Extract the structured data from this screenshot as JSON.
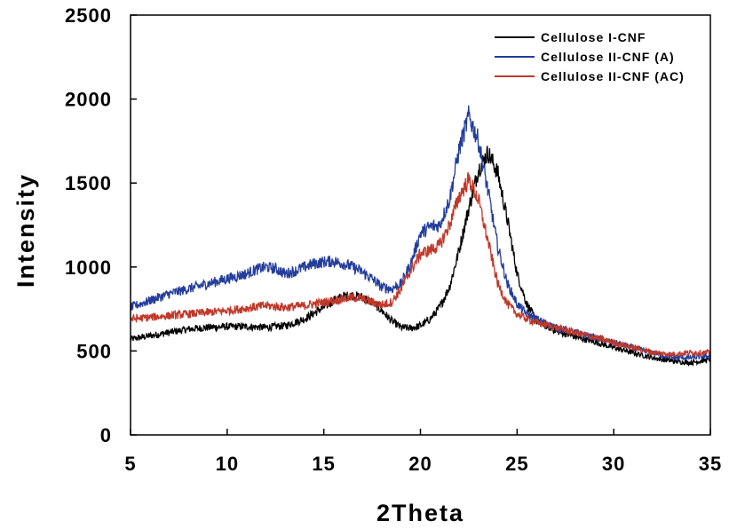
{
  "chart_data": {
    "type": "line",
    "title": "",
    "xlabel": "2Theta",
    "ylabel": "Intensity",
    "xlim": [
      5,
      35
    ],
    "ylim": [
      0,
      2500
    ],
    "xticks": [
      5,
      10,
      15,
      20,
      25,
      30,
      35
    ],
    "yticks": [
      0,
      500,
      1000,
      1500,
      2000,
      2500
    ],
    "grid": false,
    "legend_position": "top-right",
    "series": [
      {
        "name": "Cellulose I-CNF",
        "color": "#000000",
        "x": [
          5,
          6,
          7,
          8,
          9,
          10,
          11,
          12,
          13,
          14,
          15,
          15.5,
          16,
          16.5,
          17,
          17.5,
          18,
          18.5,
          19,
          19.5,
          20,
          20.5,
          21,
          21.5,
          22,
          22.5,
          23,
          23.5,
          24,
          24.5,
          25,
          25.5,
          26,
          27,
          28,
          29,
          30,
          31,
          32,
          33,
          34,
          35
        ],
        "values": [
          570,
          590,
          610,
          630,
          640,
          645,
          645,
          640,
          650,
          690,
          760,
          800,
          825,
          830,
          820,
          790,
          740,
          680,
          640,
          635,
          650,
          690,
          760,
          880,
          1100,
          1350,
          1580,
          1680,
          1560,
          1280,
          960,
          780,
          680,
          620,
          585,
          555,
          520,
          490,
          460,
          440,
          430,
          450
        ]
      },
      {
        "name": "Cellulose II-CNF (A)",
        "color": "#233d9b",
        "x": [
          5,
          6,
          7,
          8,
          9,
          10,
          11,
          11.5,
          12,
          12.5,
          13,
          13.5,
          14,
          14.5,
          15,
          15.5,
          16,
          16.5,
          17,
          17.5,
          18,
          18.5,
          19,
          19.5,
          20,
          20.5,
          21,
          21.5,
          22,
          22.5,
          23,
          23.5,
          24,
          24.5,
          25,
          25.5,
          26,
          27,
          28,
          29,
          30,
          31,
          32,
          33,
          34,
          35
        ],
        "values": [
          760,
          800,
          840,
          870,
          900,
          930,
          960,
          985,
          1000,
          990,
          960,
          975,
          1000,
          1020,
          1030,
          1035,
          1020,
          1000,
          970,
          930,
          880,
          870,
          900,
          1020,
          1200,
          1240,
          1250,
          1400,
          1700,
          1900,
          1750,
          1450,
          1120,
          900,
          780,
          720,
          690,
          640,
          610,
          580,
          550,
          520,
          490,
          460,
          460,
          470
        ]
      },
      {
        "name": "Cellulose II-CNF (AC)",
        "color": "#c0392b",
        "x": [
          5,
          6,
          7,
          8,
          9,
          10,
          11,
          12,
          13,
          14,
          15,
          16,
          16.5,
          17,
          17.5,
          18,
          18.5,
          19,
          19.5,
          20,
          20.5,
          21,
          21.5,
          22,
          22.5,
          23,
          23.5,
          24,
          24.5,
          25,
          25.5,
          26,
          27,
          28,
          29,
          30,
          31,
          32,
          33,
          34,
          35
        ],
        "values": [
          690,
          700,
          710,
          720,
          730,
          740,
          755,
          770,
          760,
          770,
          790,
          810,
          820,
          810,
          790,
          775,
          790,
          870,
          980,
          1080,
          1100,
          1130,
          1250,
          1420,
          1520,
          1400,
          1150,
          900,
          780,
          720,
          690,
          670,
          640,
          610,
          580,
          550,
          520,
          490,
          480,
          490,
          490
        ]
      }
    ]
  }
}
